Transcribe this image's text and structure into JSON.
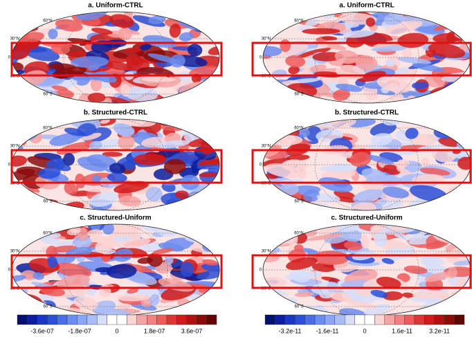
{
  "panels": [
    {
      "title": "a. Uniform-CTRL",
      "lat_labels": [
        "60°N",
        "30°N",
        "0",
        "30°S",
        "60°S"
      ]
    },
    {
      "title": "a. Uniform-CTRL",
      "lat_labels": [
        "60°N",
        "30°N",
        "0",
        "30°S",
        "60°S"
      ]
    },
    {
      "title": "b. Structured-CTRL",
      "lat_labels": [
        "60°N",
        "30°N",
        "0",
        "30°S",
        "60°S"
      ]
    },
    {
      "title": "b. Structured-CTRL",
      "lat_labels": [
        "60°N",
        "30°N",
        "0",
        "30°S",
        "60°S"
      ]
    },
    {
      "title": "c. Structured-Uniform",
      "lat_labels": [
        "60°N",
        "30°N",
        "0",
        "30°S",
        "60°S"
      ]
    },
    {
      "title": "c. Structured-Uniform",
      "lat_labels": [
        "60°N",
        "30°N",
        "0",
        "30°S",
        "60°S"
      ]
    }
  ],
  "colorbars": [
    {
      "labels": [
        "-3.6e-07",
        "-1.8e-07",
        "0",
        "1.8e-07",
        "3.6e-07"
      ]
    },
    {
      "labels": [
        "-3.2e-11",
        "-1.6e-11",
        "0",
        "1.6e-11",
        "3.2e-11"
      ]
    }
  ]
}
